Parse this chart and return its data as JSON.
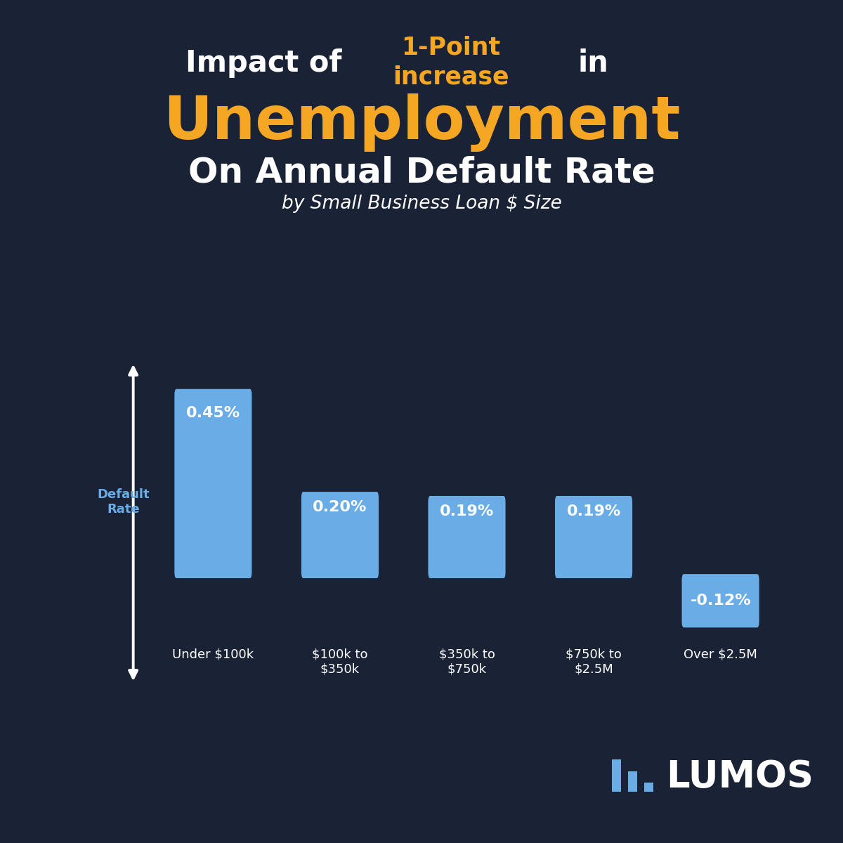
{
  "bg_color": "#1a2235",
  "bar_color": "#6aace6",
  "title_line1_white1": "Impact of ",
  "title_line1_yellow": "1-Point\nincrease",
  "title_line1_white2": " in",
  "title_line2": "Unemployment",
  "title_line3": "On Annual Default Rate",
  "title_line4": "by Small Business Loan $ Size",
  "categories": [
    "Under $100k",
    "$100k to\n$350k",
    "$350k to\n$750k",
    "$750k to\n$2.5M",
    "Over $2.5M"
  ],
  "values": [
    0.45,
    0.2,
    0.19,
    0.19,
    -0.12
  ],
  "labels": [
    "0.45%",
    "0.20%",
    "0.19%",
    "0.19%",
    "-0.12%"
  ],
  "ylabel": "Default\nRate",
  "ylabel_color": "#6aace6",
  "white_color": "#ffffff",
  "yellow_color": "#f5a623",
  "logo_text": "LUMOS",
  "logo_color_text": "#ffffff",
  "logo_color_icon": "#6aace6",
  "figsize": [
    12,
    12
  ]
}
